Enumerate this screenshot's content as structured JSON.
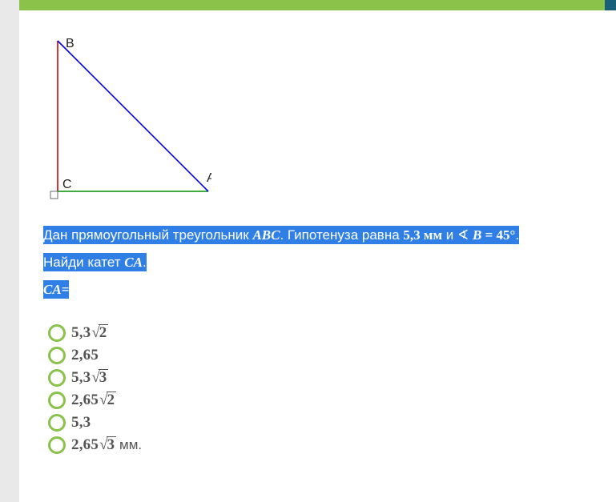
{
  "triangle": {
    "labels": {
      "B": "B",
      "C": "C",
      "A": "A"
    },
    "colors": {
      "CB": "#d40000",
      "CA": "#009000",
      "BA": "#0000e0",
      "label": "#222222",
      "rightAngle": "#6a6a6a"
    },
    "points": {
      "C": [
        18,
        196
      ],
      "B": [
        18,
        8
      ],
      "A": [
        206,
        196
      ]
    },
    "label_font_size": 16
  },
  "problem": {
    "line1_prefix": "Дан прямоугольный треугольник ",
    "tri_name": "ABC",
    "line1_mid": ". Гипотенуза равна ",
    "hypotenuse": "5,3",
    "line1_unit": " мм",
    "line1_and": " и ",
    "angle_sym": "∢",
    "angle_vertex": "B",
    "eq": " = ",
    "angle_val": "45",
    "deg": "°",
    "line1_end": ".",
    "line2_prefix": "Найди катет ",
    "cathetus": "CA",
    "line2_end": ".",
    "line3_lhs": "CA",
    "line3_eq": "="
  },
  "answers": [
    {
      "value": "5,3",
      "sqrt": "2",
      "suffix": ""
    },
    {
      "value": "2,65",
      "sqrt": "",
      "suffix": ""
    },
    {
      "value": "5,3",
      "sqrt": "3",
      "suffix": ""
    },
    {
      "value": "2,65",
      "sqrt": "2",
      "suffix": ""
    },
    {
      "value": "5,3",
      "sqrt": "",
      "suffix": ""
    },
    {
      "value": "2,65",
      "sqrt": "3",
      "suffix": " мм."
    }
  ],
  "colors": {
    "accent": "#8bc34a",
    "highlight_bg": "#2f7fe6",
    "answer_text": "#545454"
  }
}
